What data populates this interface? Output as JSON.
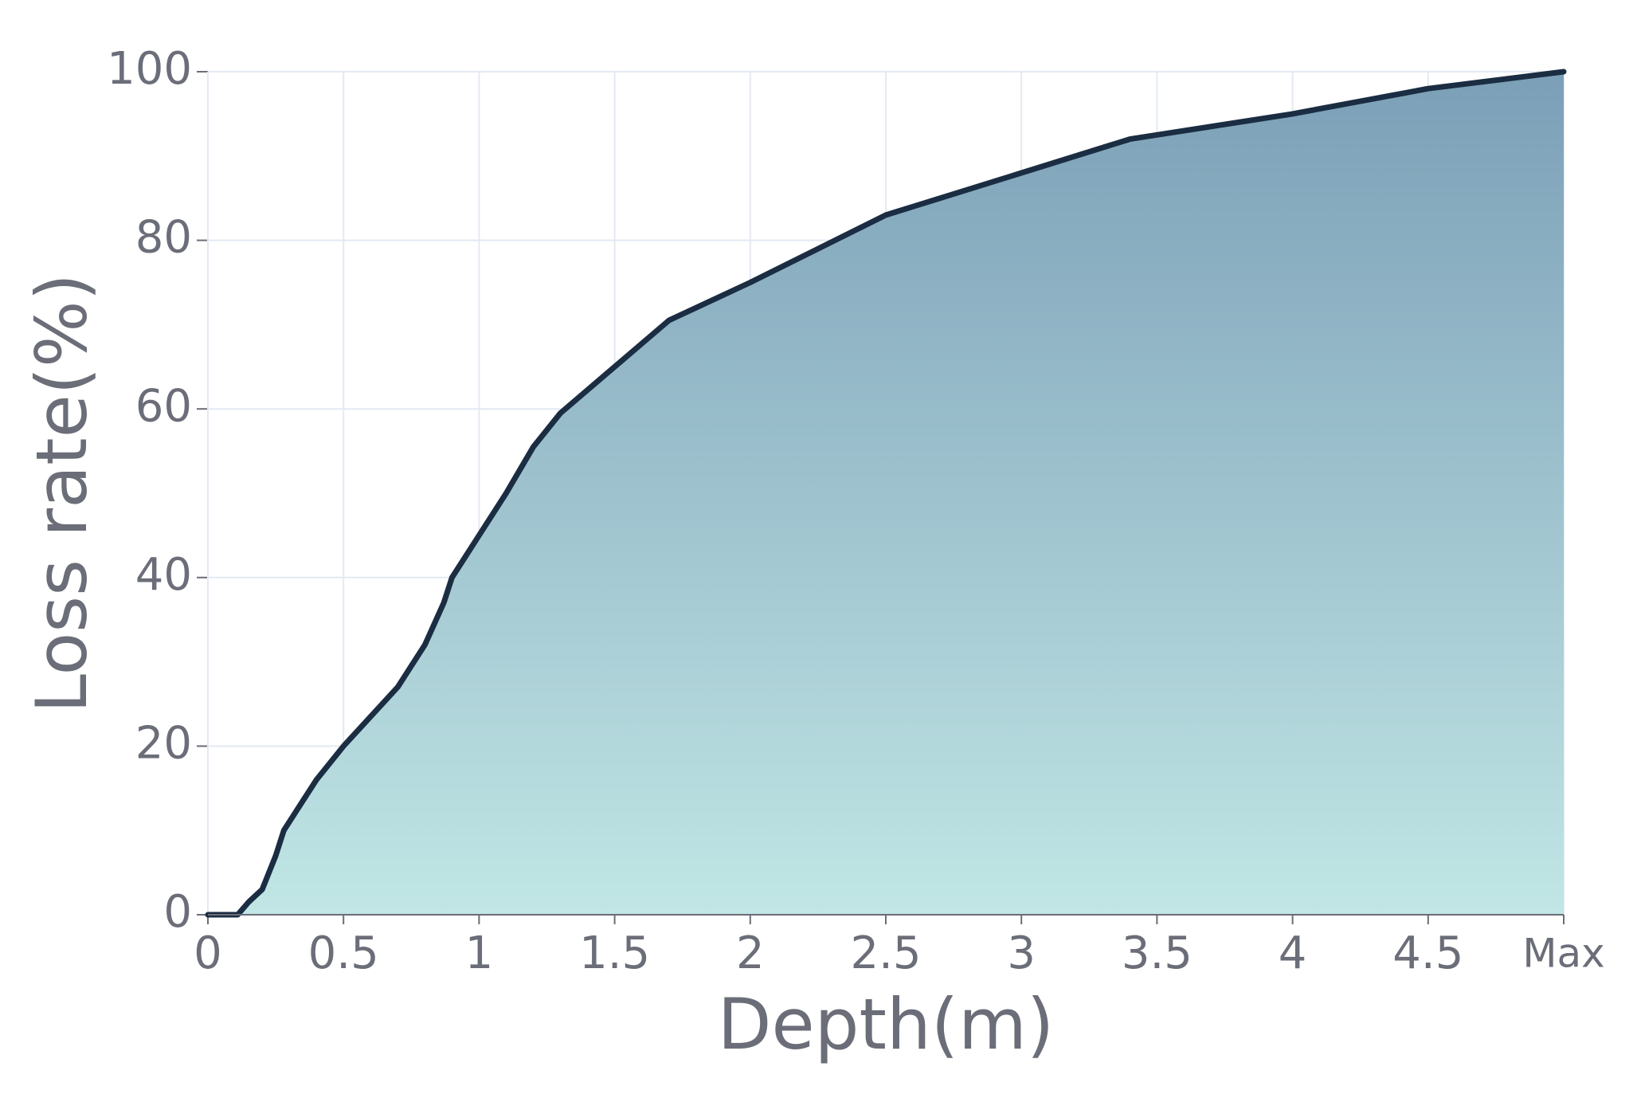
{
  "chart_data": {
    "type": "area",
    "x_label": "Depth(m)",
    "y_label": "Loss rate(%)",
    "x": [
      0,
      0.11,
      0.15,
      0.2,
      0.25,
      0.28,
      0.35,
      0.4,
      0.5,
      0.6,
      0.7,
      0.8,
      0.87,
      0.9,
      1.0,
      1.1,
      1.2,
      1.3,
      1.5,
      1.7,
      2.0,
      2.5,
      3.0,
      3.4,
      4.0,
      4.5,
      5.0
    ],
    "values": [
      0,
      0,
      1.5,
      3,
      7,
      10,
      13.5,
      16,
      20,
      23.5,
      27,
      32,
      37,
      40,
      45,
      50,
      55.5,
      59.5,
      65,
      70.5,
      75,
      83,
      88,
      92,
      95,
      98,
      100
    ],
    "line_color": "#1b2d42",
    "fill_top_color": "#7b9fb7",
    "fill_bottom_color": "#c1e6e5",
    "xlim": [
      0,
      5
    ],
    "xticks": [
      0,
      0.5,
      1,
      1.5,
      2,
      2.5,
      3,
      3.5,
      4,
      4.5,
      {
        "value": 5,
        "label": "Max"
      }
    ],
    "ylim": [
      0,
      100
    ],
    "yticks": [
      0,
      20,
      40,
      60,
      80,
      100
    ],
    "grid": true
  }
}
